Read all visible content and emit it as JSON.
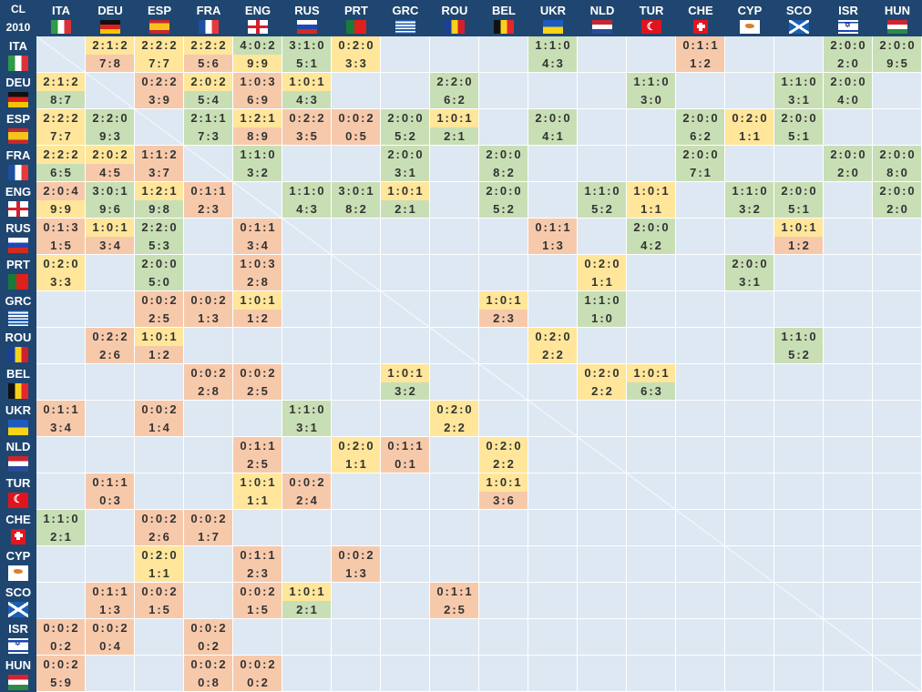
{
  "corner": {
    "line1": "CL",
    "line2": "2010"
  },
  "colors": {
    "g": "#c8dfb5",
    "y": "#ffe69a",
    "o": "#f7c9ab",
    "empty": "#dde8f3",
    "header": "#1f4670"
  },
  "teams": [
    {
      "code": "ITA",
      "flag": "italy-flag"
    },
    {
      "code": "DEU",
      "flag": "germany-flag"
    },
    {
      "code": "ESP",
      "flag": "spain-flag"
    },
    {
      "code": "FRA",
      "flag": "france-flag"
    },
    {
      "code": "ENG",
      "flag": "england-flag"
    },
    {
      "code": "RUS",
      "flag": "russia-flag"
    },
    {
      "code": "PRT",
      "flag": "portugal-flag"
    },
    {
      "code": "GRC",
      "flag": "greece-flag"
    },
    {
      "code": "ROU",
      "flag": "romania-flag"
    },
    {
      "code": "BEL",
      "flag": "belgium-flag"
    },
    {
      "code": "UKR",
      "flag": "ukraine-flag"
    },
    {
      "code": "NLD",
      "flag": "netherlands-flag"
    },
    {
      "code": "TUR",
      "flag": "turkey-flag"
    },
    {
      "code": "CHE",
      "flag": "switzerland-flag"
    },
    {
      "code": "CYP",
      "flag": "cyprus-flag"
    },
    {
      "code": "SCO",
      "flag": "scotland-flag"
    },
    {
      "code": "ISR",
      "flag": "israel-flag"
    },
    {
      "code": "HUN",
      "flag": "hungary-flag"
    }
  ],
  "matrix": {
    "ITA": {
      "DEU": [
        "2:1:2",
        "7:8",
        "y",
        "o"
      ],
      "ESP": [
        "2:2:2",
        "7:7",
        "y",
        "y"
      ],
      "FRA": [
        "2:2:2",
        "5:6",
        "y",
        "o"
      ],
      "ENG": [
        "4:0:2",
        "9:9",
        "g",
        "y"
      ],
      "RUS": [
        "3:1:0",
        "5:1",
        "g",
        "g"
      ],
      "PRT": [
        "0:2:0",
        "3:3",
        "y",
        "y"
      ],
      "UKR": [
        "1:1:0",
        "4:3",
        "g",
        "g"
      ],
      "CHE": [
        "0:1:1",
        "1:2",
        "o",
        "o"
      ],
      "ISR": [
        "2:0:0",
        "2:0",
        "g",
        "g"
      ],
      "HUN": [
        "2:0:0",
        "9:5",
        "g",
        "g"
      ]
    },
    "DEU": {
      "ITA": [
        "2:1:2",
        "8:7",
        "y",
        "g"
      ],
      "ESP": [
        "0:2:2",
        "3:9",
        "o",
        "o"
      ],
      "FRA": [
        "2:0:2",
        "5:4",
        "y",
        "g"
      ],
      "ENG": [
        "1:0:3",
        "6:9",
        "o",
        "o"
      ],
      "RUS": [
        "1:0:1",
        "4:3",
        "y",
        "g"
      ],
      "ROU": [
        "2:2:0",
        "6:2",
        "g",
        "g"
      ],
      "TUR": [
        "1:1:0",
        "3:0",
        "g",
        "g"
      ],
      "SCO": [
        "1:1:0",
        "3:1",
        "g",
        "g"
      ],
      "ISR": [
        "2:0:0",
        "4:0",
        "g",
        "g"
      ]
    },
    "ESP": {
      "ITA": [
        "2:2:2",
        "7:7",
        "y",
        "y"
      ],
      "DEU": [
        "2:2:0",
        "9:3",
        "g",
        "g"
      ],
      "FRA": [
        "2:1:1",
        "7:3",
        "g",
        "g"
      ],
      "ENG": [
        "1:2:1",
        "8:9",
        "y",
        "o"
      ],
      "RUS": [
        "0:2:2",
        "3:5",
        "o",
        "o"
      ],
      "PRT": [
        "0:0:2",
        "0:5",
        "o",
        "o"
      ],
      "GRC": [
        "2:0:0",
        "5:2",
        "g",
        "g"
      ],
      "ROU": [
        "1:0:1",
        "2:1",
        "y",
        "g"
      ],
      "UKR": [
        "2:0:0",
        "4:1",
        "g",
        "g"
      ],
      "CHE": [
        "2:0:0",
        "6:2",
        "g",
        "g"
      ],
      "CYP": [
        "0:2:0",
        "1:1",
        "y",
        "y"
      ],
      "SCO": [
        "2:0:0",
        "5:1",
        "g",
        "g"
      ]
    },
    "FRA": {
      "ITA": [
        "2:2:2",
        "6:5",
        "y",
        "g"
      ],
      "DEU": [
        "2:0:2",
        "4:5",
        "y",
        "o"
      ],
      "ESP": [
        "1:1:2",
        "3:7",
        "o",
        "o"
      ],
      "ENG": [
        "1:1:0",
        "3:2",
        "g",
        "g"
      ],
      "GRC": [
        "2:0:0",
        "3:1",
        "g",
        "g"
      ],
      "BEL": [
        "2:0:0",
        "8:2",
        "g",
        "g"
      ],
      "CHE": [
        "2:0:0",
        "7:1",
        "g",
        "g"
      ],
      "ISR": [
        "2:0:0",
        "2:0",
        "g",
        "g"
      ],
      "HUN": [
        "2:0:0",
        "8:0",
        "g",
        "g"
      ]
    },
    "ENG": {
      "ITA": [
        "2:0:4",
        "9:9",
        "o",
        "y"
      ],
      "DEU": [
        "3:0:1",
        "9:6",
        "g",
        "g"
      ],
      "ESP": [
        "1:2:1",
        "9:8",
        "y",
        "g"
      ],
      "FRA": [
        "0:1:1",
        "2:3",
        "o",
        "o"
      ],
      "RUS": [
        "1:1:0",
        "4:3",
        "g",
        "g"
      ],
      "PRT": [
        "3:0:1",
        "8:2",
        "g",
        "g"
      ],
      "GRC": [
        "1:0:1",
        "2:1",
        "y",
        "g"
      ],
      "BEL": [
        "2:0:0",
        "5:2",
        "g",
        "g"
      ],
      "NLD": [
        "1:1:0",
        "5:2",
        "g",
        "g"
      ],
      "TUR": [
        "1:0:1",
        "1:1",
        "y",
        "y"
      ],
      "CYP": [
        "1:1:0",
        "3:2",
        "g",
        "g"
      ],
      "SCO": [
        "2:0:0",
        "5:1",
        "g",
        "g"
      ],
      "HUN": [
        "2:0:0",
        "2:0",
        "g",
        "g"
      ]
    },
    "RUS": {
      "ITA": [
        "0:1:3",
        "1:5",
        "o",
        "o"
      ],
      "DEU": [
        "1:0:1",
        "3:4",
        "y",
        "o"
      ],
      "ESP": [
        "2:2:0",
        "5:3",
        "g",
        "g"
      ],
      "ENG": [
        "0:1:1",
        "3:4",
        "o",
        "o"
      ],
      "UKR": [
        "0:1:1",
        "1:3",
        "o",
        "o"
      ],
      "TUR": [
        "2:0:0",
        "4:2",
        "g",
        "g"
      ],
      "SCO": [
        "1:0:1",
        "1:2",
        "y",
        "o"
      ]
    },
    "PRT": {
      "ITA": [
        "0:2:0",
        "3:3",
        "y",
        "y"
      ],
      "ESP": [
        "2:0:0",
        "5:0",
        "g",
        "g"
      ],
      "ENG": [
        "1:0:3",
        "2:8",
        "o",
        "o"
      ],
      "NLD": [
        "0:2:0",
        "1:1",
        "y",
        "y"
      ],
      "CYP": [
        "2:0:0",
        "3:1",
        "g",
        "g"
      ]
    },
    "GRC": {
      "ESP": [
        "0:0:2",
        "2:5",
        "o",
        "o"
      ],
      "FRA": [
        "0:0:2",
        "1:3",
        "o",
        "o"
      ],
      "ENG": [
        "1:0:1",
        "1:2",
        "y",
        "o"
      ],
      "BEL": [
        "1:0:1",
        "2:3",
        "y",
        "o"
      ],
      "NLD": [
        "1:1:0",
        "1:0",
        "g",
        "g"
      ]
    },
    "ROU": {
      "DEU": [
        "0:2:2",
        "2:6",
        "o",
        "o"
      ],
      "ESP": [
        "1:0:1",
        "1:2",
        "y",
        "o"
      ],
      "UKR": [
        "0:2:0",
        "2:2",
        "y",
        "y"
      ],
      "SCO": [
        "1:1:0",
        "5:2",
        "g",
        "g"
      ]
    },
    "BEL": {
      "FRA": [
        "0:0:2",
        "2:8",
        "o",
        "o"
      ],
      "ENG": [
        "0:0:2",
        "2:5",
        "o",
        "o"
      ],
      "GRC": [
        "1:0:1",
        "3:2",
        "y",
        "g"
      ],
      "NLD": [
        "0:2:0",
        "2:2",
        "y",
        "y"
      ],
      "TUR": [
        "1:0:1",
        "6:3",
        "y",
        "g"
      ]
    },
    "UKR": {
      "ITA": [
        "0:1:1",
        "3:4",
        "o",
        "o"
      ],
      "ESP": [
        "0:0:2",
        "1:4",
        "o",
        "o"
      ],
      "RUS": [
        "1:1:0",
        "3:1",
        "g",
        "g"
      ],
      "ROU": [
        "0:2:0",
        "2:2",
        "y",
        "y"
      ]
    },
    "NLD": {
      "ENG": [
        "0:1:1",
        "2:5",
        "o",
        "o"
      ],
      "PRT": [
        "0:2:0",
        "1:1",
        "y",
        "y"
      ],
      "GRC": [
        "0:1:1",
        "0:1",
        "o",
        "o"
      ],
      "BEL": [
        "0:2:0",
        "2:2",
        "y",
        "y"
      ]
    },
    "TUR": {
      "DEU": [
        "0:1:1",
        "0:3",
        "o",
        "o"
      ],
      "ENG": [
        "1:0:1",
        "1:1",
        "y",
        "y"
      ],
      "RUS": [
        "0:0:2",
        "2:4",
        "o",
        "o"
      ],
      "BEL": [
        "1:0:1",
        "3:6",
        "y",
        "o"
      ]
    },
    "CHE": {
      "ITA": [
        "1:1:0",
        "2:1",
        "g",
        "g"
      ],
      "ESP": [
        "0:0:2",
        "2:6",
        "o",
        "o"
      ],
      "FRA": [
        "0:0:2",
        "1:7",
        "o",
        "o"
      ]
    },
    "CYP": {
      "ESP": [
        "0:2:0",
        "1:1",
        "y",
        "y"
      ],
      "ENG": [
        "0:1:1",
        "2:3",
        "o",
        "o"
      ],
      "PRT": [
        "0:0:2",
        "1:3",
        "o",
        "o"
      ]
    },
    "SCO": {
      "DEU": [
        "0:1:1",
        "1:3",
        "o",
        "o"
      ],
      "ESP": [
        "0:0:2",
        "1:5",
        "o",
        "o"
      ],
      "ENG": [
        "0:0:2",
        "1:5",
        "o",
        "o"
      ],
      "RUS": [
        "1:0:1",
        "2:1",
        "y",
        "g"
      ],
      "ROU": [
        "0:1:1",
        "2:5",
        "o",
        "o"
      ]
    },
    "ISR": {
      "ITA": [
        "0:0:2",
        "0:2",
        "o",
        "o"
      ],
      "DEU": [
        "0:0:2",
        "0:4",
        "o",
        "o"
      ],
      "FRA": [
        "0:0:2",
        "0:2",
        "o",
        "o"
      ]
    },
    "HUN": {
      "ITA": [
        "0:0:2",
        "5:9",
        "o",
        "o"
      ],
      "FRA": [
        "0:0:2",
        "0:8",
        "o",
        "o"
      ],
      "ENG": [
        "0:0:2",
        "0:2",
        "o",
        "o"
      ]
    }
  }
}
